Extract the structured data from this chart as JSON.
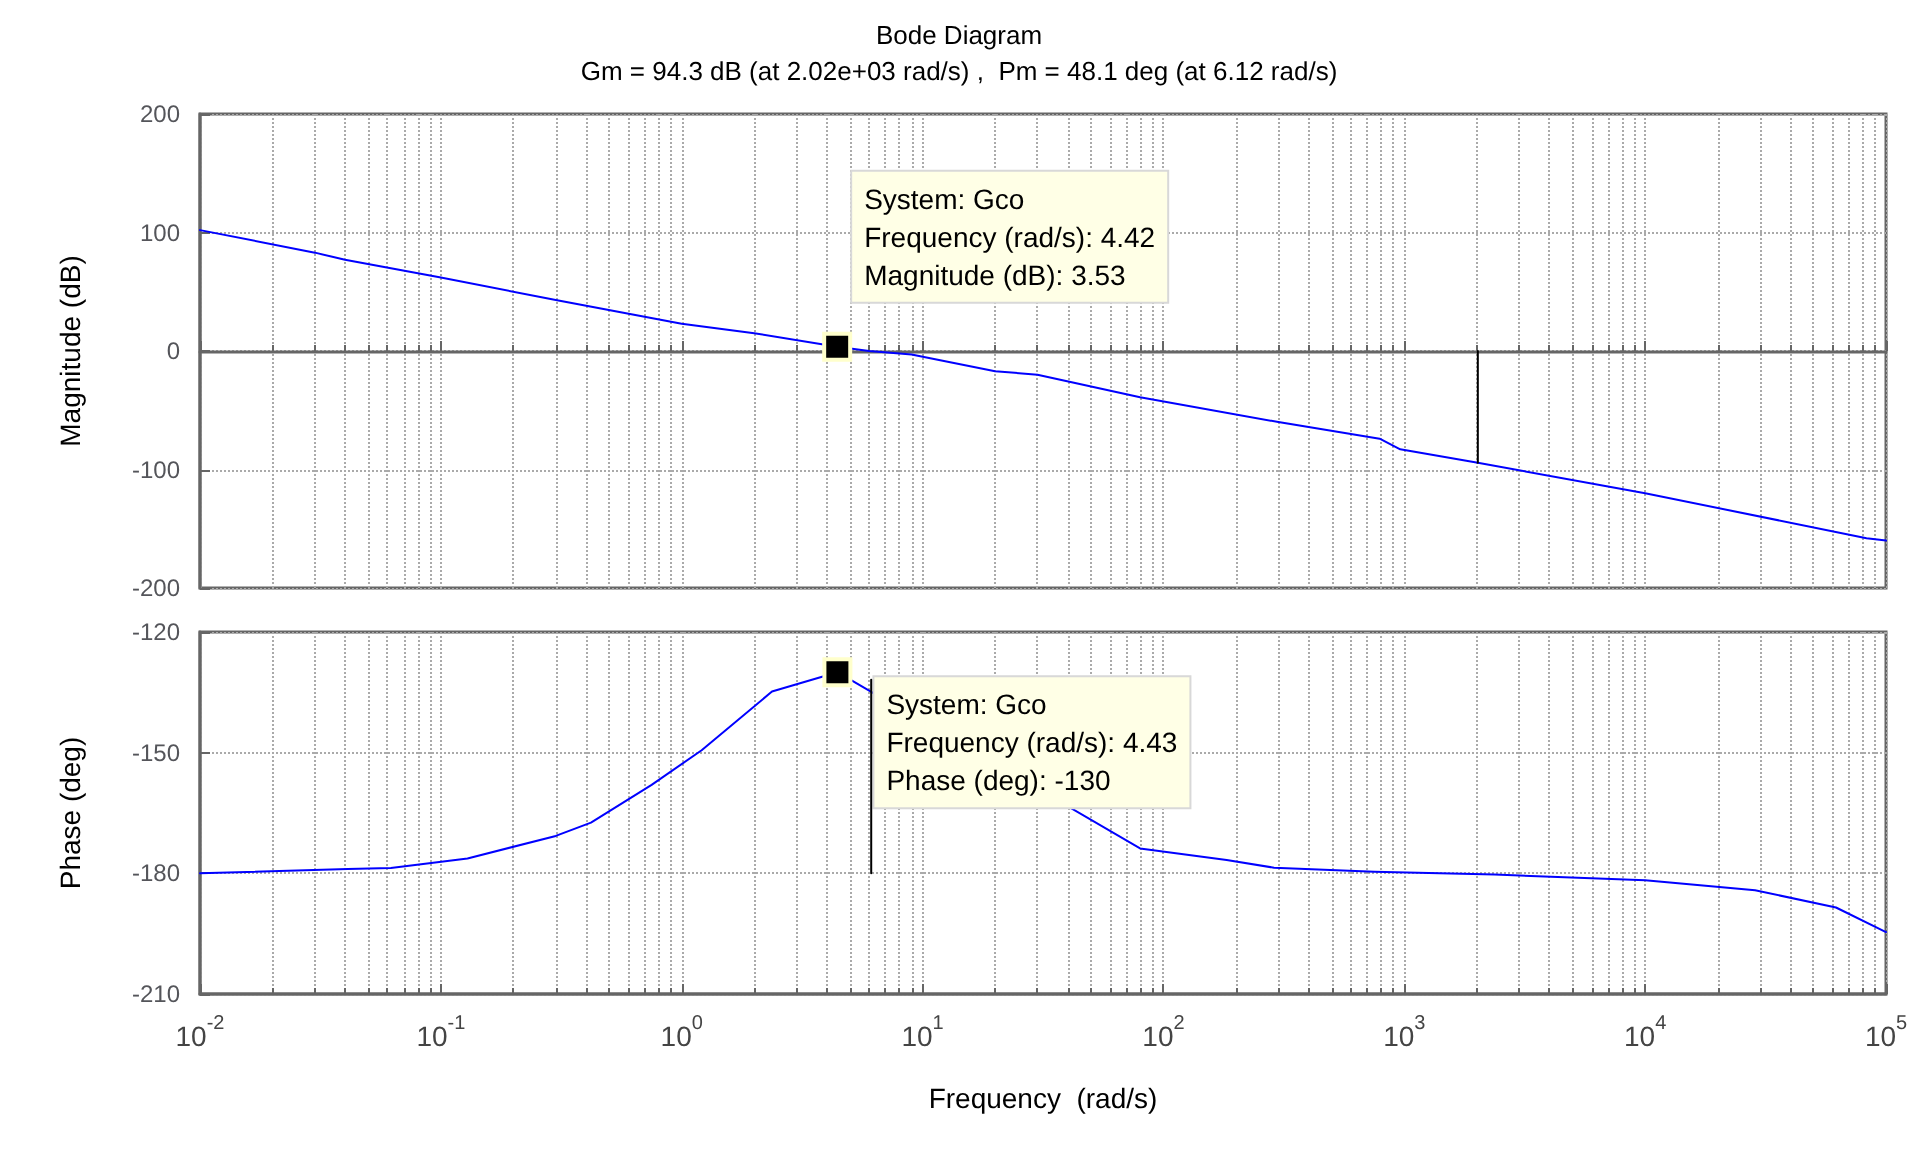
{
  "chart_data": [
    {
      "type": "line",
      "title": "Bode Diagram",
      "subtitle": "Gm = 94.3 dB (at 2.02e+03 rad/s) ,  Pm = 48.1 deg (at 6.12 rad/s)",
      "ylabel": "Magnitude (dB)",
      "xlim": [
        0.01,
        100000
      ],
      "xticks": [
        {
          "value": 0.01,
          "label": null
        },
        {
          "value": 0.1,
          "label": null
        },
        {
          "value": 1,
          "label": null
        },
        {
          "value": 10,
          "label": null
        },
        {
          "value": 100,
          "label": null
        },
        {
          "value": 1000,
          "label": null
        },
        {
          "value": 10000,
          "label": null
        },
        {
          "value": 100000,
          "label": null
        }
      ],
      "ylim": [
        -200,
        200
      ],
      "yticks": [
        -200,
        -100,
        0,
        100,
        200
      ],
      "log": "x",
      "grid": true,
      "tick_labels": "y",
      "marker": "none",
      "series": [
        {
          "color": "#0000ff",
          "x": [
            0.01,
            0.03,
            0.04,
            0.1,
            0.3,
            1,
            2,
            4.42,
            6,
            9,
            20,
            30,
            80,
            300,
            790,
            962,
            2020,
            10000,
            83000,
            100000
          ],
          "values": [
            102,
            83,
            77,
            62,
            43,
            23,
            15,
            3.53,
            0,
            -3,
            -17,
            -20,
            -39,
            -60,
            -74,
            -83,
            -94.3,
            -120,
            -158,
            -160
          ]
        },
        {
          "color": "#000000",
          "x": [
            2020,
            2020
          ],
          "values": [
            0,
            -94.3
          ]
        }
      ],
      "annotations": [
        {
          "text": "System: Gco\nFrequency (rad/s): 4.42\nMagnitude (dB): 3.53",
          "x": 4.42,
          "y": 3.53
        }
      ]
    },
    {
      "type": "line",
      "xlabel": "Frequency  (rad/s)",
      "ylabel": "Phase (deg)",
      "xlim": [
        0.01,
        100000
      ],
      "xticks": [
        {
          "value": 0.01,
          "label": "10$^{-2}$"
        },
        {
          "value": 0.1,
          "label": "10$^{-1}$"
        },
        {
          "value": 1,
          "label": "10$^{0}$"
        },
        {
          "value": 10,
          "label": "10$^{1}$"
        },
        {
          "value": 100,
          "label": "10$^{2}$"
        },
        {
          "value": 1000,
          "label": "10$^{3}$"
        },
        {
          "value": 10000,
          "label": "10$^{4}$"
        },
        {
          "value": 100000,
          "label": "10$^{5}$"
        }
      ],
      "ylim": [
        -210,
        -120
      ],
      "yticks": [
        -210,
        -180,
        -150,
        -120
      ],
      "log": "x",
      "grid": true,
      "marker": "none",
      "series": [
        {
          "color": "#0000ff",
          "x": [
            0.01,
            0.041,
            0.062,
            0.129,
            0.3,
            0.42,
            0.75,
            1.21,
            2.37,
            4.43,
            80,
            183,
            288,
            750,
            2370,
            10000,
            28600,
            62000,
            100000
          ],
          "values": [
            -180,
            -178.9,
            -178.7,
            -176.3,
            -170.7,
            -167.4,
            -158,
            -149.4,
            -134.8,
            -130,
            -173.8,
            -176.7,
            -178.6,
            -179.6,
            -180.3,
            -181.7,
            -184.2,
            -188.5,
            -194.6
          ]
        },
        {
          "color": "#000000",
          "x": [
            6.12,
            6.12
          ],
          "values": [
            -180,
            -131.9
          ]
        }
      ],
      "annotations": [
        {
          "text": "System: Gco\nFrequency (rad/s): 4.43\nPhase (deg): -130",
          "x": 4.43,
          "y": -130
        }
      ]
    }
  ]
}
